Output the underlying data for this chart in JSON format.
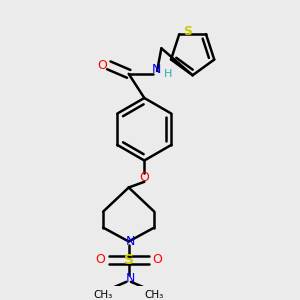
{
  "background_color": "#ebebeb",
  "bond_color": "#000000",
  "atom_colors": {
    "O": "#ff0000",
    "N": "#0000ff",
    "S_sulfonyl": "#cccc00",
    "S_thiophene": "#cccc00",
    "H": "#20b2aa",
    "C": "#000000"
  },
  "figsize": [
    3.0,
    3.0
  ],
  "dpi": 100,
  "xlim": [
    0,
    10
  ],
  "ylim": [
    0,
    10
  ]
}
